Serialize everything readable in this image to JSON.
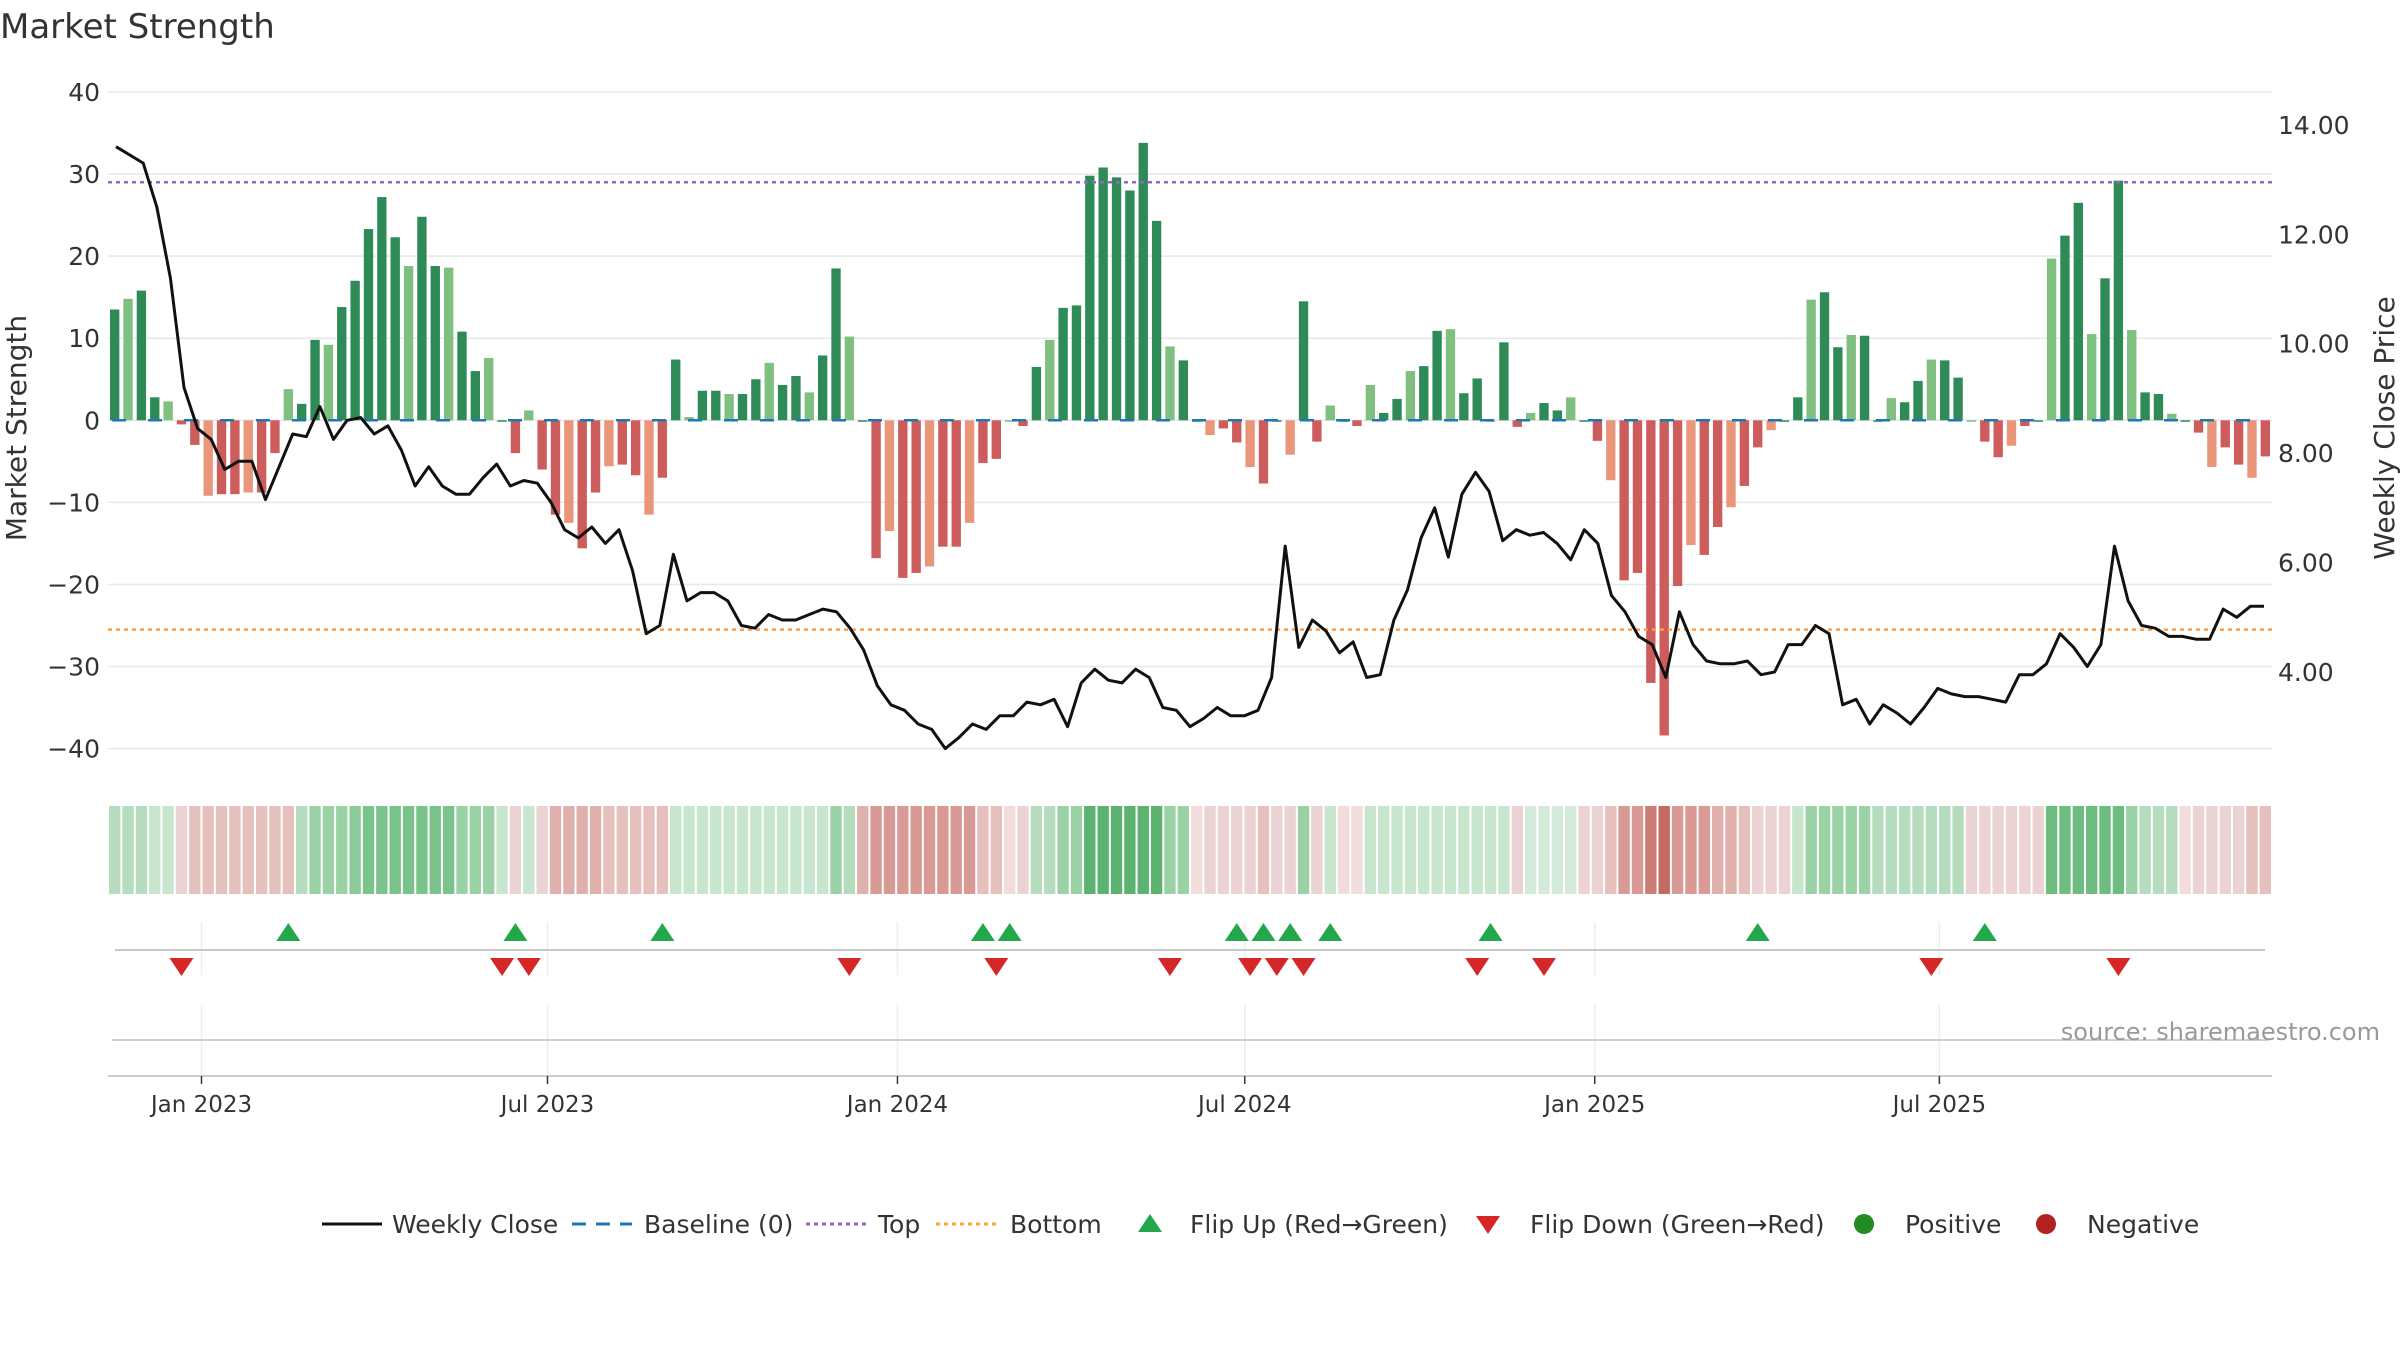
{
  "chart_data": {
    "type": "bar",
    "title": "Market Strength",
    "ylabel_left": "Market Strength",
    "ylabel_right": "Weekly Close Price",
    "source": "source: sharemaestro.com",
    "y_left": {
      "range": [
        -42,
        40
      ],
      "ticks": [
        40,
        30,
        20,
        10,
        0,
        -10,
        -20,
        -30,
        -40
      ],
      "tick_labels": [
        "40",
        "30",
        "20",
        "10",
        "0",
        "−10",
        "−20",
        "−30",
        "−40"
      ]
    },
    "y_right": {
      "range": [
        2.3,
        14.6
      ],
      "ticks": [
        14,
        12,
        10,
        8,
        6,
        4
      ],
      "tick_labels": [
        "14.00",
        "12.00",
        "10.00",
        "8.00",
        "6.00",
        "4.00"
      ]
    },
    "x": {
      "start_week_offset": -7,
      "weeks_per_month": 4.345,
      "ticks": [
        {
          "week": 0,
          "label": "Jan 2023"
        },
        {
          "week": 25.9,
          "label": "Jul 2023"
        },
        {
          "week": 52.1,
          "label": "Jan 2024"
        },
        {
          "week": 78.1,
          "label": "Jul 2024"
        },
        {
          "week": 104.3,
          "label": "Jan 2025"
        },
        {
          "week": 130.1,
          "label": "Jul 2025"
        }
      ]
    },
    "top_line": 29,
    "bottom_line": -25.5,
    "strength": [
      13.5,
      14.8,
      15.8,
      2.8,
      2.3,
      -0.5,
      -3,
      -9.2,
      -9,
      -9,
      -8.8,
      -8.8,
      -4,
      3.8,
      2,
      9.8,
      9.2,
      13.8,
      17,
      23.3,
      27.2,
      22.3,
      18.8,
      24.8,
      18.8,
      18.6,
      10.8,
      6,
      7.6,
      0,
      -4,
      1.2,
      -6,
      -11.5,
      -12.5,
      -15.6,
      -8.8,
      -5.6,
      -5.4,
      -6.7,
      -11.5,
      -7,
      7.4,
      0.4,
      3.6,
      3.6,
      3.2,
      3.2,
      5,
      7,
      4.3,
      5.4,
      3.4,
      7.9,
      18.5,
      10.2,
      0,
      -16.8,
      -13.5,
      -19.2,
      -18.6,
      -17.8,
      -15.4,
      -15.4,
      -12.5,
      -5.2,
      -4.7,
      0,
      -0.7,
      6.5,
      9.8,
      13.7,
      14,
      29.8,
      30.8,
      29.6,
      28,
      33.8,
      24.3,
      9,
      7.3,
      0,
      -1.8,
      -1,
      -2.7,
      -5.7,
      -7.7,
      0,
      -4.2,
      14.5,
      -2.6,
      1.8,
      0,
      -0.7,
      4.3,
      0.9,
      2.6,
      6,
      6.6,
      10.9,
      11.1,
      3.3,
      5.1,
      0,
      9.5,
      -0.8,
      0.9,
      2.1,
      1.2,
      2.8,
      0,
      -2.5,
      -7.3,
      -19.5,
      -18.6,
      -32,
      -38.4,
      -20.2,
      -15.2,
      -16.4,
      -13,
      -10.6,
      -8,
      -3.3,
      -1.2,
      0,
      2.8,
      14.7,
      15.6,
      8.9,
      10.4,
      10.3,
      0,
      2.7,
      2.2,
      4.8,
      7.4,
      7.3,
      5.2,
      0,
      -2.6,
      -4.5,
      -3.1,
      -0.7,
      0,
      19.7,
      22.5,
      26.5,
      10.5,
      17.3,
      29.2,
      11,
      3.4,
      3.2,
      0.8,
      0,
      -1.5,
      -5.7,
      -3.3,
      -5.4,
      -7,
      -4.4
    ],
    "weekly_close": [
      13.6,
      13.45,
      13.3,
      12.5,
      11.2,
      9.2,
      8.45,
      8.25,
      7.7,
      7.85,
      7.85,
      7.15,
      7.75,
      8.35,
      8.3,
      8.85,
      8.25,
      8.6,
      8.65,
      8.35,
      8.5,
      8.05,
      7.4,
      7.75,
      7.4,
      7.25,
      7.25,
      7.55,
      7.8,
      7.4,
      7.5,
      7.45,
      7.1,
      6.6,
      6.45,
      6.65,
      6.35,
      6.6,
      5.85,
      4.7,
      4.85,
      6.15,
      5.3,
      5.45,
      5.45,
      5.3,
      4.85,
      4.8,
      5.05,
      4.95,
      4.95,
      5.05,
      5.15,
      5.1,
      4.8,
      4.4,
      3.75,
      3.4,
      3.3,
      3.05,
      2.95,
      2.6,
      2.8,
      3.05,
      2.95,
      3.2,
      3.2,
      3.45,
      3.4,
      3.5,
      3.0,
      3.8,
      4.05,
      3.85,
      3.8,
      4.05,
      3.9,
      3.35,
      3.3,
      3.0,
      3.15,
      3.35,
      3.2,
      3.2,
      3.3,
      3.9,
      6.3,
      4.45,
      4.95,
      4.75,
      4.35,
      4.55,
      3.9,
      3.95,
      4.95,
      5.5,
      6.45,
      7.0,
      6.1,
      7.25,
      7.65,
      7.3,
      6.4,
      6.6,
      6.5,
      6.55,
      6.35,
      6.05,
      6.6,
      6.35,
      5.4,
      5.1,
      4.65,
      4.5,
      3.9,
      5.1,
      4.5,
      4.2,
      4.15,
      4.15,
      4.2,
      3.95,
      4.0,
      4.5,
      4.5,
      4.85,
      4.7,
      3.4,
      3.5,
      3.05,
      3.4,
      3.25,
      3.05,
      3.35,
      3.7,
      3.6,
      3.55,
      3.55,
      3.5,
      3.45,
      3.95,
      3.95,
      4.15,
      4.7,
      4.45,
      4.1,
      4.5,
      6.3,
      5.3,
      4.85,
      4.8,
      4.65,
      4.65,
      4.6,
      4.6,
      5.15,
      5.0,
      5.2,
      5.2
    ],
    "strip_colors": [
      "#b5dcbd",
      "#b5dcbd",
      "#b5dcbd",
      "#c8e6cd",
      "#c8e6cd",
      "#ead3d2",
      "#e6c0bd",
      "#e6c0bd",
      "#e6c0bd",
      "#e6c0bd",
      "#e6c0bd",
      "#e6c0bd",
      "#e6c0bd",
      "#e6c0bd",
      "#b5dcbd",
      "#9ad1a5",
      "#9ad1a5",
      "#9ad1a5",
      "#8ccb99",
      "#7ac38a",
      "#7ac38a",
      "#7ac38a",
      "#7ac38a",
      "#7ac38a",
      "#7ac38a",
      "#7ac38a",
      "#9ad1a5",
      "#9ad1a5",
      "#9ad1a5",
      "#c8e6cd",
      "#ead3d2",
      "#c8e6cd",
      "#ead3d2",
      "#e0b0ad",
      "#e0b0ad",
      "#e0b0ad",
      "#e0b0ad",
      "#e6c0bd",
      "#e6c0bd",
      "#e6c0bd",
      "#e6c0bd",
      "#e6c0bd",
      "#c8e6cd",
      "#c8e6cd",
      "#c8e6cd",
      "#c8e6cd",
      "#c8e6cd",
      "#c8e6cd",
      "#c8e6cd",
      "#c8e6cd",
      "#c8e6cd",
      "#c8e6cd",
      "#c8e6cd",
      "#c8e6cd",
      "#9ad1a5",
      "#b5dcbd",
      "#e0b0ad",
      "#d99994",
      "#d99994",
      "#d99994",
      "#d99994",
      "#d99994",
      "#d99994",
      "#d99994",
      "#d99994",
      "#e6c0bd",
      "#e6c0bd",
      "#f2dcdc",
      "#ead3d2",
      "#b5dcbd",
      "#b5dcbd",
      "#9ad1a5",
      "#9ad1a5",
      "#5cb370",
      "#5cb370",
      "#5cb370",
      "#5cb370",
      "#5cb370",
      "#5cb370",
      "#9ad1a5",
      "#9ad1a5",
      "#f2dcdc",
      "#ead3d2",
      "#ead3d2",
      "#ead3d2",
      "#ead3d2",
      "#e6c0bd",
      "#ead3d2",
      "#ead3d2",
      "#9ad1a5",
      "#ead3d2",
      "#c8e6cd",
      "#f2dcdc",
      "#f2dcdc",
      "#c8e6cd",
      "#c8e6cd",
      "#c8e6cd",
      "#c8e6cd",
      "#c8e6cd",
      "#c8e6cd",
      "#c8e6cd",
      "#c8e6cd",
      "#c8e6cd",
      "#c8e6cd",
      "#c8e6cd",
      "#ead3d2",
      "#d4ead8",
      "#d4ead8",
      "#d4ead8",
      "#d4ead8",
      "#ead3d2",
      "#ead3d2",
      "#e6c0bd",
      "#d99994",
      "#d99994",
      "#cc7c76",
      "#c46a63",
      "#d99994",
      "#d99994",
      "#d99994",
      "#e0b0ad",
      "#e0b0ad",
      "#e6c0bd",
      "#ead3d2",
      "#ead3d2",
      "#ead3d2",
      "#c8e6cd",
      "#9ad1a5",
      "#9ad1a5",
      "#9ad1a5",
      "#9ad1a5",
      "#9ad1a5",
      "#b5dcbd",
      "#b5dcbd",
      "#b5dcbd",
      "#b5dcbd",
      "#b5dcbd",
      "#b5dcbd",
      "#b5dcbd",
      "#ead3d2",
      "#ead3d2",
      "#ead3d2",
      "#ead3d2",
      "#ead3d2",
      "#ead3d2",
      "#6dbc80",
      "#6dbc80",
      "#6dbc80",
      "#6dbc80",
      "#6dbc80",
      "#6dbc80",
      "#9ad1a5",
      "#b5dcbd",
      "#b5dcbd",
      "#b5dcbd",
      "#f2dcdc",
      "#ead3d2",
      "#ead3d2",
      "#ead3d2",
      "#ead3d2",
      "#e6c0bd",
      "#e6c0bd"
    ],
    "flip_up_weeks": [
      13,
      30,
      41,
      65,
      67,
      84,
      86,
      88,
      91,
      103,
      123,
      140
    ],
    "flip_down_weeks": [
      5,
      29,
      31,
      55,
      66,
      79,
      85,
      87,
      89,
      102,
      107,
      136,
      150
    ],
    "legend": [
      {
        "key": "weekly_close",
        "label": "Weekly Close"
      },
      {
        "key": "baseline",
        "label": "Baseline (0)"
      },
      {
        "key": "top",
        "label": "Top"
      },
      {
        "key": "bottom",
        "label": "Bottom"
      },
      {
        "key": "flip_up",
        "label": "Flip Up (Red→Green)"
      },
      {
        "key": "flip_down",
        "label": "Flip Down (Green→Red)"
      },
      {
        "key": "positive",
        "label": "Positive"
      },
      {
        "key": "negative",
        "label": "Negative"
      }
    ]
  },
  "colors": {
    "pos_strong": "#2e8b57",
    "pos_weak": "#7fbf7f",
    "neg_strong": "#cd5c5c",
    "neg_weak": "#e9967a",
    "close_line": "#111111",
    "baseline": "#1f77b4",
    "top": "#9467bd",
    "bottom": "#ff9f3d",
    "flip_up": "#22a84a",
    "flip_down": "#d62728",
    "positive_dot": "#228b22",
    "negative_dot": "#b22222",
    "grid": "#e8e8e8",
    "text": "#333333"
  }
}
